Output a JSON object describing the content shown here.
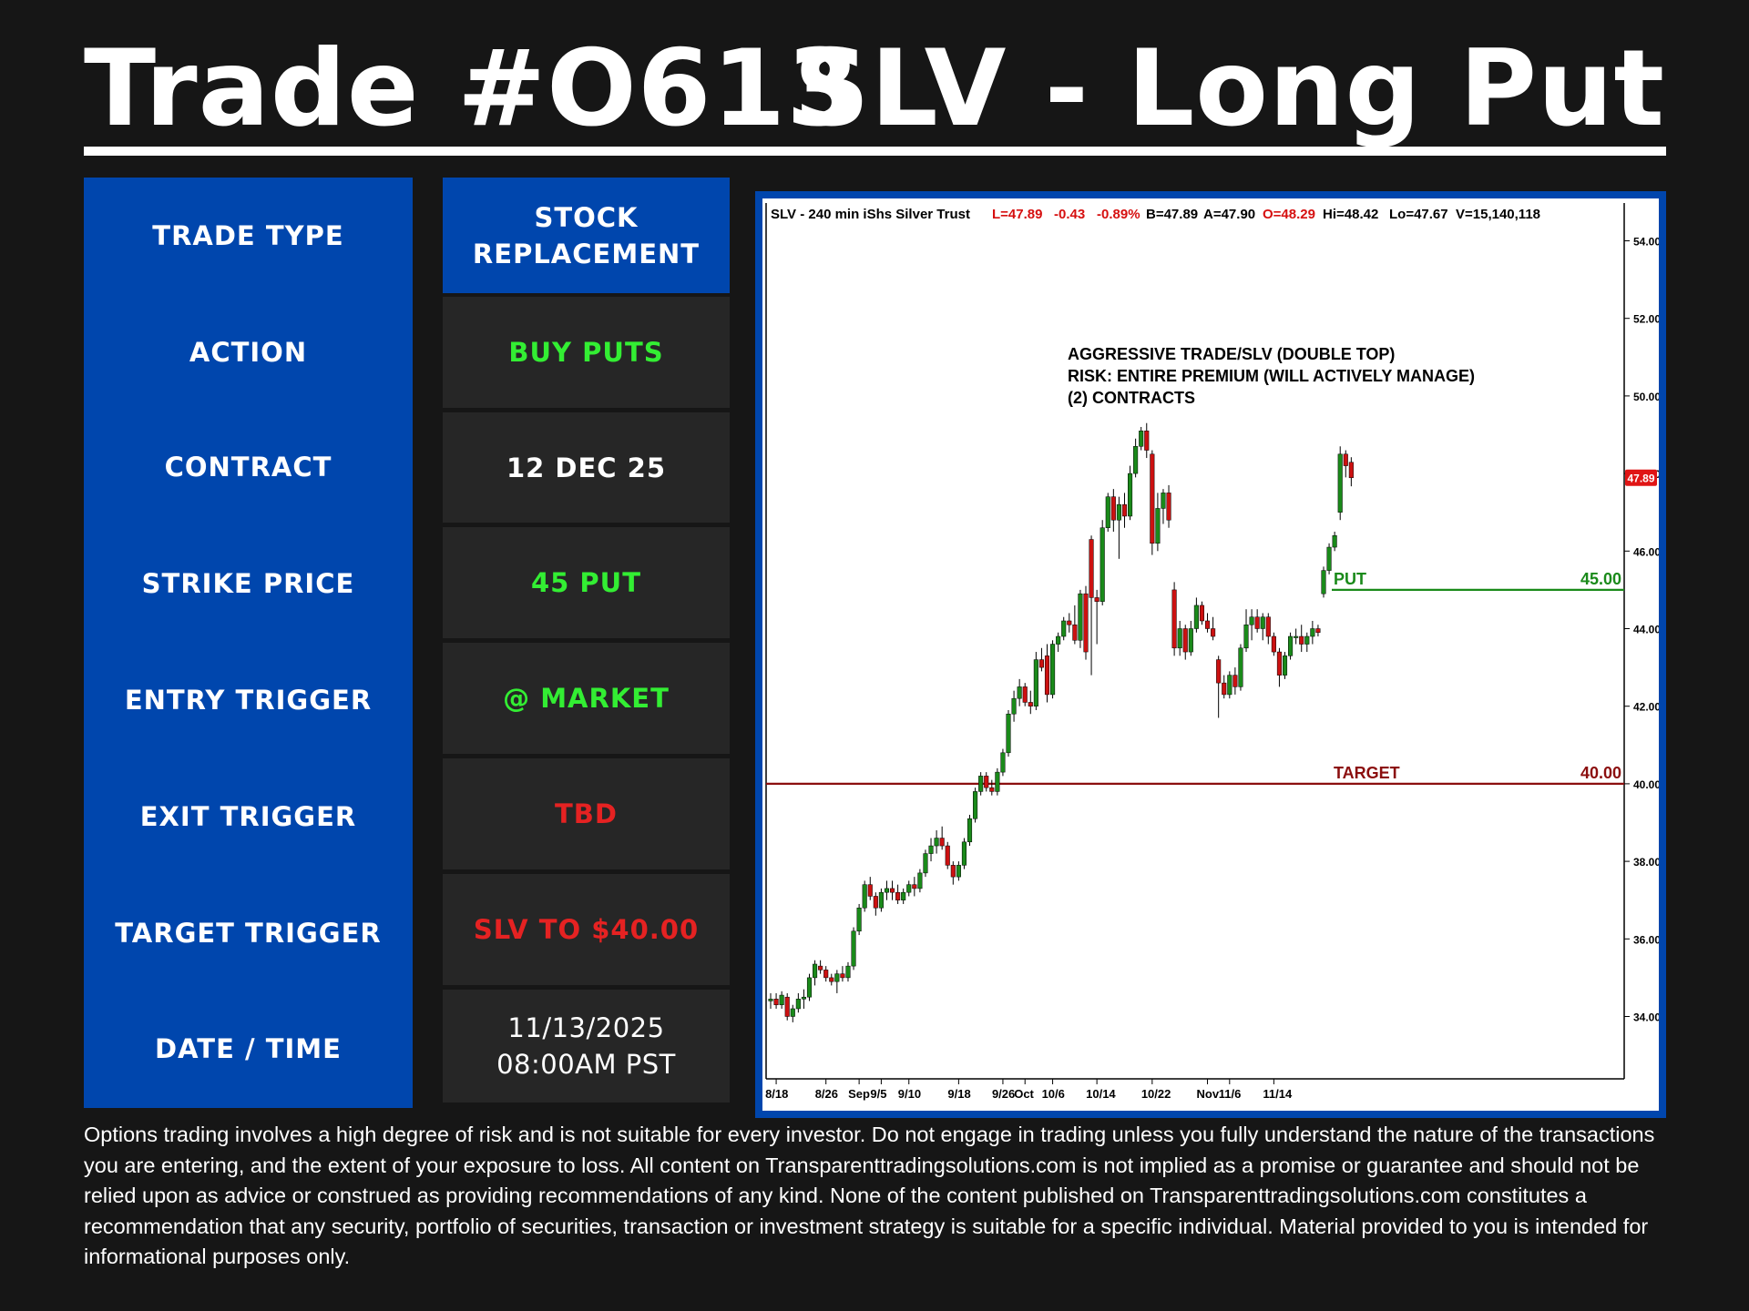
{
  "header": {
    "trade_id": "Trade #O613",
    "trade_name": "SLV - Long Put"
  },
  "rows": [
    {
      "label": "TRADE TYPE",
      "value": "STOCK REPLACEMENT",
      "color": "#ffffff"
    },
    {
      "label": "ACTION",
      "value": "BUY PUTS",
      "color": "#33ee33"
    },
    {
      "label": "CONTRACT",
      "value": "12 DEC 25",
      "color": "#ffffff"
    },
    {
      "label": "STRIKE PRICE",
      "value": "45 PUT",
      "color": "#33ee33"
    },
    {
      "label": "ENTRY TRIGGER",
      "value": "@ MARKET",
      "color": "#33ee33"
    },
    {
      "label": "EXIT TRIGGER",
      "value": "TBD",
      "color": "#e52222"
    },
    {
      "label": "TARGET TRIGGER",
      "value": "SLV TO $40.00",
      "color": "#e52222"
    },
    {
      "label": "DATE / TIME",
      "value": "11/13/2025 08:00AM PST",
      "color": "#ffffff"
    }
  ],
  "colors": {
    "panel_blue": "#0046ad",
    "cell_gray": "#262626",
    "background": "#161616",
    "up_candle": "#1a8a1a",
    "down_candle": "#cc1111",
    "put_line": "#1a8a1a",
    "target_line": "#8b0e0e"
  },
  "chart_data": {
    "type": "candlestick",
    "header": {
      "symbol": "SLV - 240 min  iShs Silver Trust",
      "last": "L=47.89",
      "chg": "-0.43",
      "pct": "-0.89%",
      "bid": "B=47.89",
      "ask": "A=47.90",
      "open": "O=48.29",
      "high": "Hi=48.42",
      "low": "Lo=47.67",
      "volume": "V=15,140,118"
    },
    "note_lines": [
      "AGGRESSIVE TRADE/SLV (DOUBLE TOP)",
      "RISK: ENTIRE PREMIUM (WILL ACTIVELY MANAGE)",
      "(2) CONTRACTS"
    ],
    "ylim": [
      33.5,
      55.5
    ],
    "y_ticks": [
      "54.00",
      "52.00",
      "50.00",
      "48.00",
      "46.00",
      "44.00",
      "42.00",
      "40.00",
      "38.00",
      "36.00",
      "34.00"
    ],
    "x_ticks": [
      {
        "label": "8/18",
        "i": 1
      },
      {
        "label": "8/26",
        "i": 10
      },
      {
        "label": "Sep",
        "i": 16
      },
      {
        "label": "9/5",
        "i": 20
      },
      {
        "label": "9/10",
        "i": 25
      },
      {
        "label": "9/18",
        "i": 34
      },
      {
        "label": "9/26",
        "i": 42
      },
      {
        "label": "Oct",
        "i": 46
      },
      {
        "label": "10/6",
        "i": 51
      },
      {
        "label": "10/14",
        "i": 59
      },
      {
        "label": "10/22",
        "i": 69
      },
      {
        "label": "Nov",
        "i": 79
      },
      {
        "label": "11/6",
        "i": 83
      },
      {
        "label": "11/14",
        "i": 91
      }
    ],
    "last_price": "47.89",
    "levels": [
      {
        "name": "PUT",
        "value": 45.0,
        "label": "45.00"
      },
      {
        "name": "TARGET",
        "value": 40.0,
        "label": "40.00"
      }
    ],
    "candles": [
      {
        "o": 34.4,
        "h": 34.6,
        "l": 34.2,
        "c": 34.45
      },
      {
        "o": 34.45,
        "h": 34.6,
        "l": 34.2,
        "c": 34.3
      },
      {
        "o": 34.3,
        "h": 34.65,
        "l": 34.2,
        "c": 34.55
      },
      {
        "o": 34.5,
        "h": 34.6,
        "l": 33.9,
        "c": 34.0
      },
      {
        "o": 34.0,
        "h": 34.3,
        "l": 33.85,
        "c": 34.2
      },
      {
        "o": 34.2,
        "h": 34.6,
        "l": 34.1,
        "c": 34.45
      },
      {
        "o": 34.45,
        "h": 34.7,
        "l": 34.2,
        "c": 34.5
      },
      {
        "o": 34.5,
        "h": 35.1,
        "l": 34.4,
        "c": 35.0
      },
      {
        "o": 35.0,
        "h": 35.45,
        "l": 34.8,
        "c": 35.35
      },
      {
        "o": 35.3,
        "h": 35.45,
        "l": 35.1,
        "c": 35.2
      },
      {
        "o": 35.2,
        "h": 35.3,
        "l": 34.9,
        "c": 35.0
      },
      {
        "o": 35.0,
        "h": 35.1,
        "l": 34.8,
        "c": 34.9
      },
      {
        "o": 34.9,
        "h": 35.2,
        "l": 34.6,
        "c": 35.1
      },
      {
        "o": 35.1,
        "h": 35.3,
        "l": 34.9,
        "c": 35.0
      },
      {
        "o": 35.0,
        "h": 35.4,
        "l": 34.9,
        "c": 35.3
      },
      {
        "o": 35.3,
        "h": 36.3,
        "l": 35.2,
        "c": 36.2
      },
      {
        "o": 36.2,
        "h": 36.9,
        "l": 36.1,
        "c": 36.8
      },
      {
        "o": 36.8,
        "h": 37.5,
        "l": 36.7,
        "c": 37.4
      },
      {
        "o": 37.4,
        "h": 37.6,
        "l": 37.0,
        "c": 37.1
      },
      {
        "o": 37.1,
        "h": 37.2,
        "l": 36.6,
        "c": 36.8
      },
      {
        "o": 36.8,
        "h": 37.3,
        "l": 36.7,
        "c": 37.2
      },
      {
        "o": 37.2,
        "h": 37.5,
        "l": 37.0,
        "c": 37.3
      },
      {
        "o": 37.3,
        "h": 37.5,
        "l": 37.0,
        "c": 37.2
      },
      {
        "o": 37.2,
        "h": 37.4,
        "l": 36.9,
        "c": 37.0
      },
      {
        "o": 37.0,
        "h": 37.3,
        "l": 36.9,
        "c": 37.2
      },
      {
        "o": 37.2,
        "h": 37.5,
        "l": 37.1,
        "c": 37.4
      },
      {
        "o": 37.4,
        "h": 37.6,
        "l": 37.1,
        "c": 37.3
      },
      {
        "o": 37.3,
        "h": 37.8,
        "l": 37.2,
        "c": 37.7
      },
      {
        "o": 37.7,
        "h": 38.3,
        "l": 37.6,
        "c": 38.2
      },
      {
        "o": 38.2,
        "h": 38.6,
        "l": 38.0,
        "c": 38.4
      },
      {
        "o": 38.4,
        "h": 38.8,
        "l": 38.2,
        "c": 38.6
      },
      {
        "o": 38.6,
        "h": 38.9,
        "l": 38.3,
        "c": 38.4
      },
      {
        "o": 38.4,
        "h": 38.5,
        "l": 37.8,
        "c": 37.9
      },
      {
        "o": 37.9,
        "h": 38.0,
        "l": 37.4,
        "c": 37.6
      },
      {
        "o": 37.6,
        "h": 38.0,
        "l": 37.5,
        "c": 37.9
      },
      {
        "o": 37.9,
        "h": 38.6,
        "l": 37.8,
        "c": 38.5
      },
      {
        "o": 38.5,
        "h": 39.2,
        "l": 38.4,
        "c": 39.1
      },
      {
        "o": 39.1,
        "h": 39.9,
        "l": 39.0,
        "c": 39.8
      },
      {
        "o": 39.8,
        "h": 40.3,
        "l": 39.7,
        "c": 40.2
      },
      {
        "o": 40.2,
        "h": 40.3,
        "l": 39.8,
        "c": 39.9
      },
      {
        "o": 39.9,
        "h": 40.1,
        "l": 39.7,
        "c": 39.8
      },
      {
        "o": 39.8,
        "h": 40.4,
        "l": 39.7,
        "c": 40.3
      },
      {
        "o": 40.3,
        "h": 40.9,
        "l": 40.2,
        "c": 40.8
      },
      {
        "o": 40.8,
        "h": 41.9,
        "l": 40.7,
        "c": 41.8
      },
      {
        "o": 41.8,
        "h": 42.4,
        "l": 41.6,
        "c": 42.2
      },
      {
        "o": 42.2,
        "h": 42.7,
        "l": 42.0,
        "c": 42.5
      },
      {
        "o": 42.5,
        "h": 42.6,
        "l": 42.0,
        "c": 42.1
      },
      {
        "o": 42.1,
        "h": 42.4,
        "l": 41.8,
        "c": 42.0
      },
      {
        "o": 42.0,
        "h": 43.4,
        "l": 41.9,
        "c": 43.2
      },
      {
        "o": 43.2,
        "h": 43.5,
        "l": 42.9,
        "c": 43.0
      },
      {
        "o": 43.3,
        "h": 43.6,
        "l": 42.1,
        "c": 42.3
      },
      {
        "o": 42.3,
        "h": 43.7,
        "l": 42.2,
        "c": 43.6
      },
      {
        "o": 43.6,
        "h": 43.9,
        "l": 43.4,
        "c": 43.8
      },
      {
        "o": 43.8,
        "h": 44.3,
        "l": 43.7,
        "c": 44.2
      },
      {
        "o": 44.2,
        "h": 44.4,
        "l": 43.9,
        "c": 44.1
      },
      {
        "o": 44.1,
        "h": 44.6,
        "l": 43.6,
        "c": 43.7
      },
      {
        "o": 43.7,
        "h": 45.0,
        "l": 43.5,
        "c": 44.9
      },
      {
        "o": 44.9,
        "h": 45.1,
        "l": 43.2,
        "c": 43.4
      },
      {
        "o": 46.3,
        "h": 46.4,
        "l": 42.8,
        "c": 44.8
      },
      {
        "o": 44.8,
        "h": 45.0,
        "l": 43.6,
        "c": 44.7
      },
      {
        "o": 44.7,
        "h": 46.8,
        "l": 44.6,
        "c": 46.6
      },
      {
        "o": 46.6,
        "h": 47.5,
        "l": 46.5,
        "c": 47.4
      },
      {
        "o": 47.4,
        "h": 47.6,
        "l": 46.5,
        "c": 46.8
      },
      {
        "o": 46.8,
        "h": 47.4,
        "l": 45.8,
        "c": 47.2
      },
      {
        "o": 47.2,
        "h": 47.5,
        "l": 46.6,
        "c": 46.9
      },
      {
        "o": 46.9,
        "h": 48.2,
        "l": 46.8,
        "c": 48.0
      },
      {
        "o": 48.0,
        "h": 48.9,
        "l": 47.9,
        "c": 48.7
      },
      {
        "o": 48.7,
        "h": 49.2,
        "l": 48.6,
        "c": 49.1
      },
      {
        "o": 49.1,
        "h": 49.3,
        "l": 48.4,
        "c": 48.6
      },
      {
        "o": 48.5,
        "h": 48.6,
        "l": 45.9,
        "c": 46.2
      },
      {
        "o": 46.2,
        "h": 47.5,
        "l": 46.0,
        "c": 47.1
      },
      {
        "o": 47.1,
        "h": 47.6,
        "l": 46.7,
        "c": 47.5
      },
      {
        "o": 47.5,
        "h": 47.7,
        "l": 46.6,
        "c": 46.8
      },
      {
        "o": 45.0,
        "h": 45.2,
        "l": 43.3,
        "c": 43.5
      },
      {
        "o": 43.5,
        "h": 44.2,
        "l": 43.3,
        "c": 44.0
      },
      {
        "o": 44.0,
        "h": 44.1,
        "l": 43.2,
        "c": 43.4
      },
      {
        "o": 43.4,
        "h": 44.2,
        "l": 43.3,
        "c": 44.0
      },
      {
        "o": 44.0,
        "h": 44.8,
        "l": 43.9,
        "c": 44.6
      },
      {
        "o": 44.6,
        "h": 44.7,
        "l": 44.1,
        "c": 44.2
      },
      {
        "o": 44.2,
        "h": 44.4,
        "l": 43.9,
        "c": 44.0
      },
      {
        "o": 44.0,
        "h": 44.3,
        "l": 43.7,
        "c": 43.8
      },
      {
        "o": 43.2,
        "h": 43.3,
        "l": 41.7,
        "c": 42.6
      },
      {
        "o": 42.6,
        "h": 42.8,
        "l": 42.2,
        "c": 42.3
      },
      {
        "o": 42.3,
        "h": 42.9,
        "l": 42.2,
        "c": 42.8
      },
      {
        "o": 42.8,
        "h": 43.0,
        "l": 42.3,
        "c": 42.5
      },
      {
        "o": 42.5,
        "h": 43.6,
        "l": 42.4,
        "c": 43.5
      },
      {
        "o": 43.5,
        "h": 44.5,
        "l": 43.4,
        "c": 44.1
      },
      {
        "o": 44.1,
        "h": 44.5,
        "l": 43.7,
        "c": 44.3
      },
      {
        "o": 44.3,
        "h": 44.5,
        "l": 43.9,
        "c": 44.0
      },
      {
        "o": 44.0,
        "h": 44.4,
        "l": 43.7,
        "c": 44.3
      },
      {
        "o": 44.3,
        "h": 44.4,
        "l": 43.6,
        "c": 43.8
      },
      {
        "o": 43.8,
        "h": 43.9,
        "l": 43.3,
        "c": 43.4
      },
      {
        "o": 43.4,
        "h": 43.5,
        "l": 42.5,
        "c": 42.8
      },
      {
        "o": 42.8,
        "h": 43.4,
        "l": 42.7,
        "c": 43.3
      },
      {
        "o": 43.3,
        "h": 43.9,
        "l": 43.2,
        "c": 43.8
      },
      {
        "o": 43.8,
        "h": 44.0,
        "l": 43.6,
        "c": 43.8
      },
      {
        "o": 43.8,
        "h": 44.1,
        "l": 43.4,
        "c": 43.6
      },
      {
        "o": 43.6,
        "h": 43.9,
        "l": 43.4,
        "c": 43.8
      },
      {
        "o": 43.8,
        "h": 44.2,
        "l": 43.6,
        "c": 44.0
      },
      {
        "o": 44.0,
        "h": 44.1,
        "l": 43.8,
        "c": 43.9
      },
      {
        "o": 44.9,
        "h": 45.6,
        "l": 44.8,
        "c": 45.5
      },
      {
        "o": 45.5,
        "h": 46.2,
        "l": 45.4,
        "c": 46.1
      },
      {
        "o": 46.1,
        "h": 46.5,
        "l": 46.0,
        "c": 46.4
      },
      {
        "o": 47.0,
        "h": 48.7,
        "l": 46.8,
        "c": 48.5
      },
      {
        "o": 48.5,
        "h": 48.6,
        "l": 47.9,
        "c": 48.2
      },
      {
        "o": 48.29,
        "h": 48.42,
        "l": 47.67,
        "c": 47.89
      }
    ]
  },
  "disclaimer": "Options trading involves a high degree of risk and is not suitable for every investor.  Do not engage in trading unless you fully understand the nature of the transactions you are entering, and the extent of your exposure to loss.  All content on Transparenttradingsolutions.com is not implied as a promise or guarantee and should not be relied upon as advice or construed as providing recommendations of any kind.  None of the content published on Transparenttradingsolutions.com constitutes a recommendation that any security, portfolio of securities, transaction or investment strategy is suitable for a specific individual.  Material provided to you is intended for informational purposes only."
}
